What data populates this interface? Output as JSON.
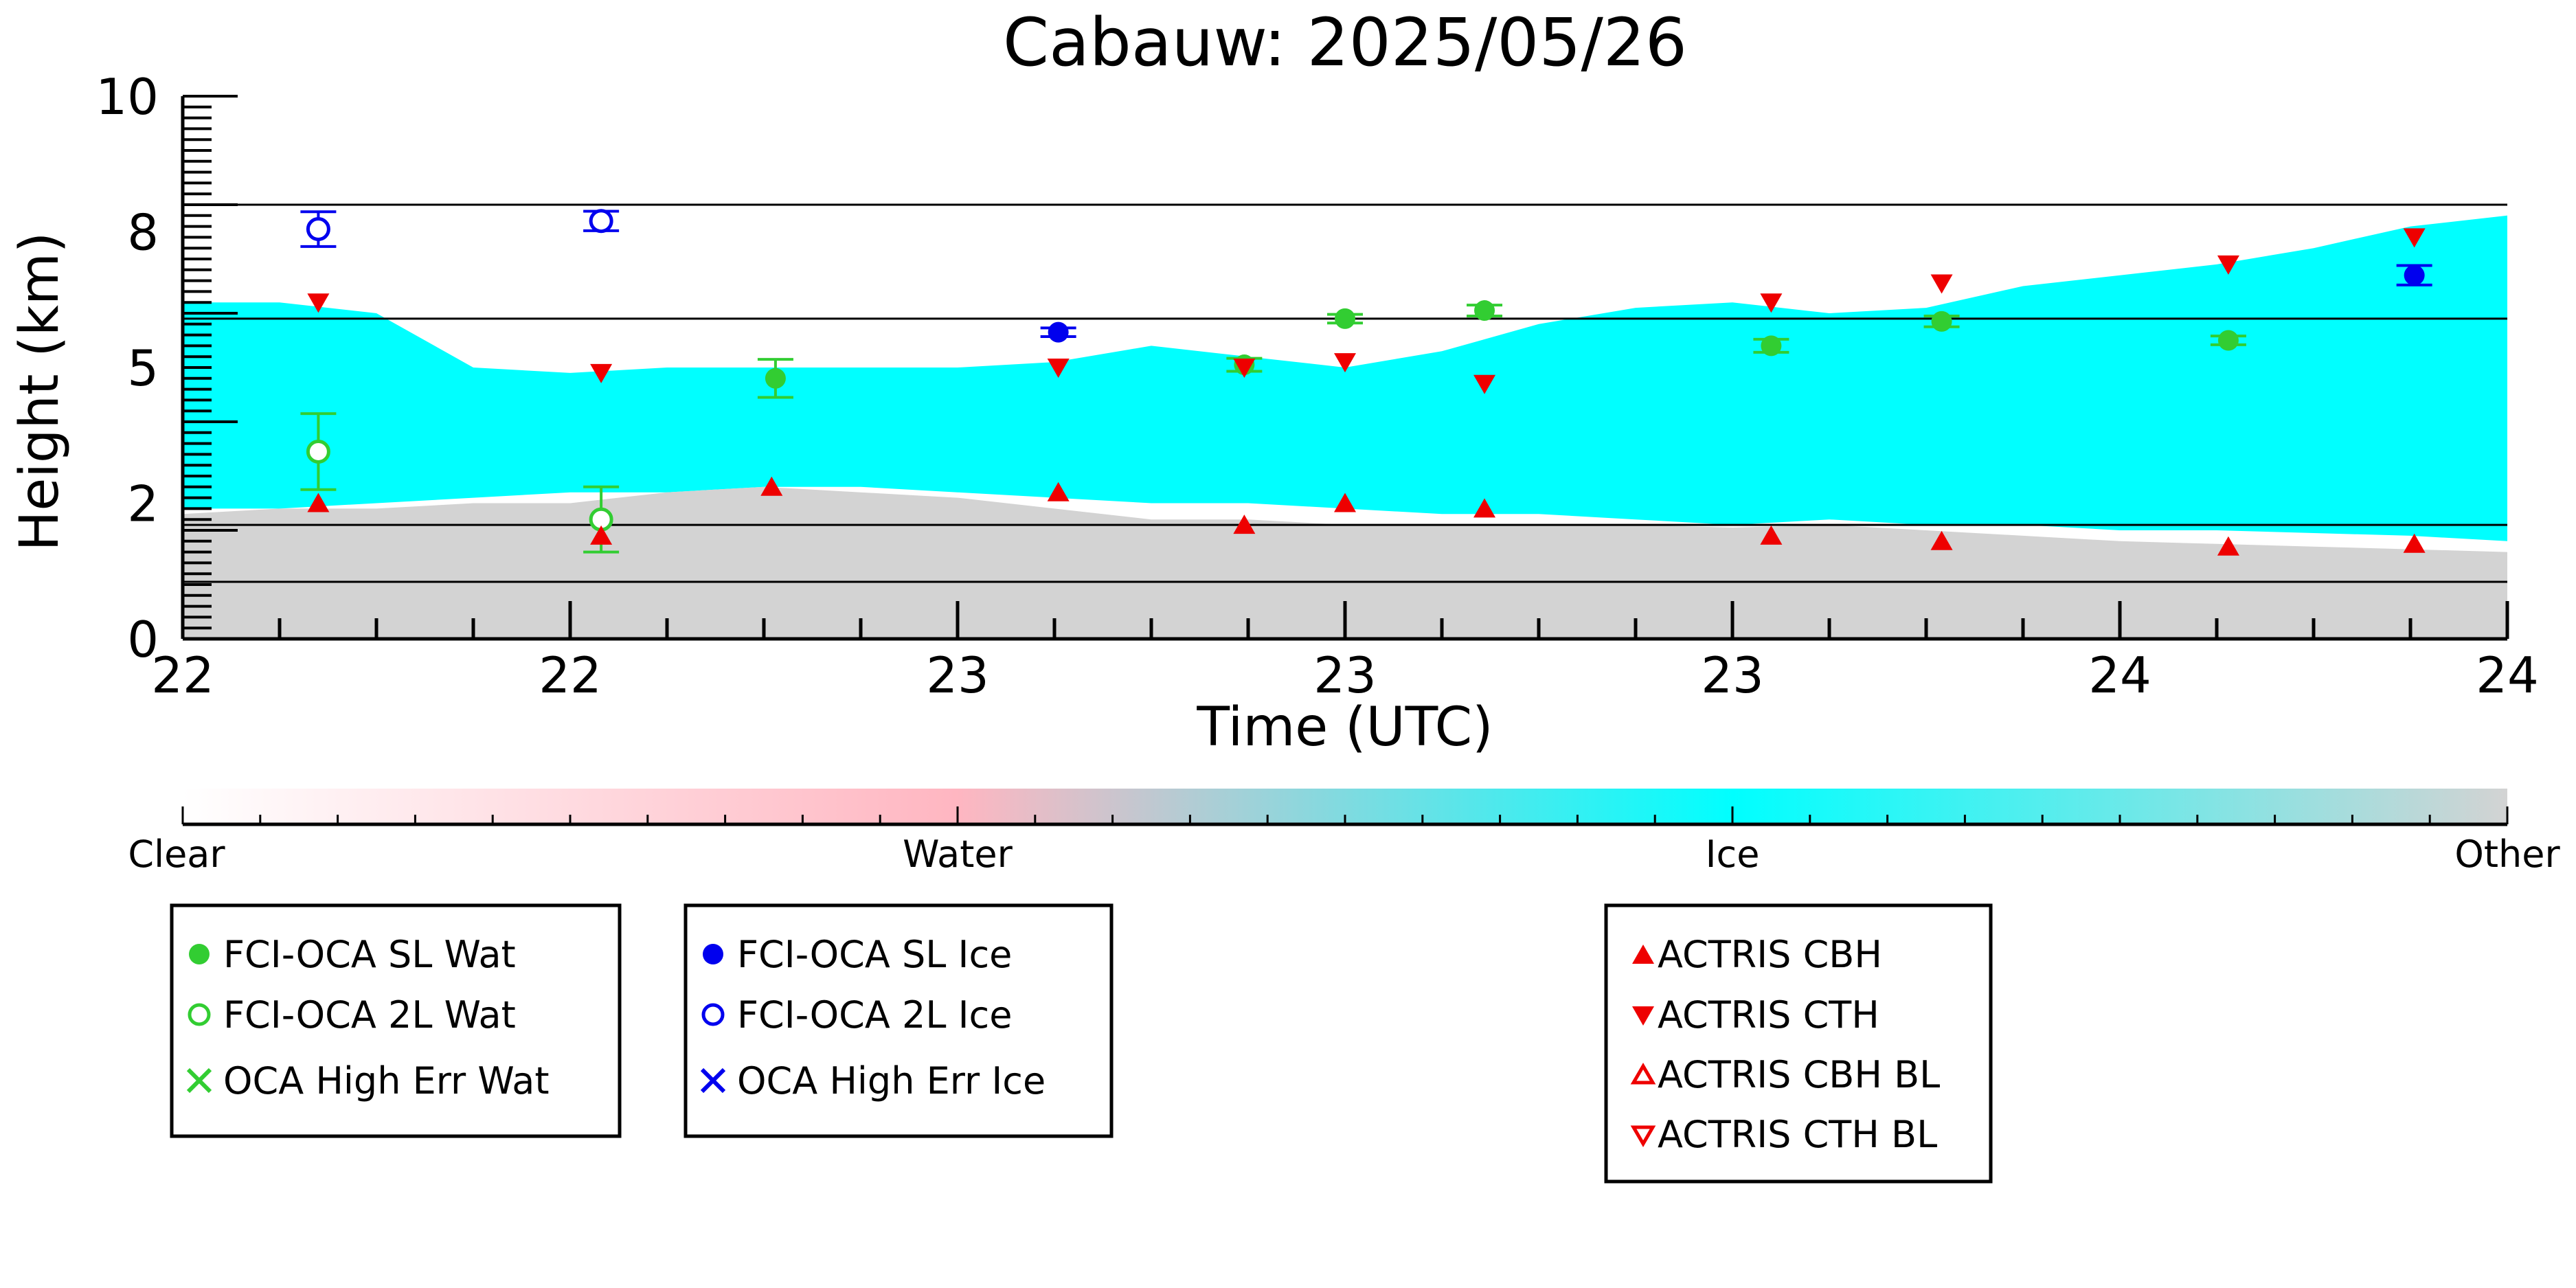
{
  "chart_data": {
    "type": "scatter",
    "title": "Cabauw: 2025/05/26",
    "xlabel": "Time (UTC)",
    "ylabel": "Height (km)",
    "xlim": [
      0,
      6
    ],
    "ylim": [
      0,
      10
    ],
    "x_tick_labels": [
      "22",
      "22",
      "23",
      "23",
      "23",
      "24",
      "24"
    ],
    "y_tick_labels": [
      "0",
      "2",
      "5",
      "8",
      "10"
    ],
    "grid": false,
    "reference_lines_km": [
      1.05,
      2.1,
      5.9,
      8.0
    ],
    "cloud_mask": {
      "class_colors": {
        "ice": "#00FFFF",
        "other": "#D3D3D3"
      },
      "ice_base_km": [
        2.4,
        2.4,
        2.5,
        2.6,
        2.7,
        2.7,
        2.8,
        2.8,
        2.7,
        2.6,
        2.5,
        2.5,
        2.4,
        2.3,
        2.3,
        2.2,
        2.1,
        2.2,
        2.1,
        2.1,
        2.0,
        2.0,
        1.95,
        1.9,
        1.8
      ],
      "ice_top_km": [
        6.2,
        6.2,
        6.0,
        5.0,
        4.9,
        5.0,
        5.0,
        5.0,
        5.0,
        5.1,
        5.4,
        5.2,
        5.0,
        5.3,
        5.8,
        6.1,
        6.2,
        6.0,
        6.1,
        6.5,
        6.7,
        6.9,
        7.2,
        7.6,
        7.8
      ],
      "other_top_km": [
        2.3,
        2.4,
        2.4,
        2.5,
        2.5,
        2.7,
        2.8,
        2.7,
        2.6,
        2.4,
        2.2,
        2.2,
        2.1,
        2.1,
        2.1,
        2.1,
        2.05,
        2.1,
        2.0,
        1.9,
        1.8,
        1.75,
        1.7,
        1.65,
        1.6
      ]
    },
    "colorbar": {
      "labels": [
        "Clear",
        "Water",
        "Ice",
        "Other"
      ],
      "colors": [
        "#FFFFFF",
        "#FFB6C1",
        "#00FFFF",
        "#D3D3D3"
      ]
    },
    "series": [
      {
        "name": "FCI-OCA SL Wat",
        "marker": "filled-circle",
        "color": "#32CD32",
        "points": [
          {
            "x": 1.53,
            "y": 4.8,
            "err": 0.35
          },
          {
            "x": 2.74,
            "y": 5.05,
            "err": 0.12
          },
          {
            "x": 3.0,
            "y": 5.9,
            "err": 0.08
          },
          {
            "x": 3.36,
            "y": 6.05,
            "err": 0.1
          },
          {
            "x": 4.1,
            "y": 5.4,
            "err": 0.12
          },
          {
            "x": 4.54,
            "y": 5.85,
            "err": 0.1
          },
          {
            "x": 5.28,
            "y": 5.5,
            "err": 0.08
          }
        ]
      },
      {
        "name": "FCI-OCA 2L Wat",
        "marker": "open-circle",
        "color": "#32CD32",
        "points": [
          {
            "x": 0.35,
            "y": 3.45,
            "err": 0.7
          },
          {
            "x": 1.08,
            "y": 2.2,
            "err": 0.6
          }
        ]
      },
      {
        "name": "OCA High Err Wat",
        "marker": "x",
        "color": "#32CD32",
        "points": []
      },
      {
        "name": "FCI-OCA SL Ice",
        "marker": "filled-circle",
        "color": "#0000EE",
        "points": [
          {
            "x": 2.26,
            "y": 5.65,
            "err": 0.08
          },
          {
            "x": 5.76,
            "y": 6.7,
            "err": 0.18
          }
        ]
      },
      {
        "name": "FCI-OCA 2L Ice",
        "marker": "open-circle",
        "color": "#0000EE",
        "points": [
          {
            "x": 0.35,
            "y": 7.55,
            "err": 0.32
          },
          {
            "x": 1.08,
            "y": 7.7,
            "err": 0.18
          }
        ]
      },
      {
        "name": "OCA High Err Ice",
        "marker": "x",
        "color": "#0000EE",
        "points": []
      },
      {
        "name": "ACTRIS CBH",
        "marker": "triangle-up",
        "color": "#EE0000",
        "points": [
          {
            "x": 0.35,
            "y": 2.5
          },
          {
            "x": 1.08,
            "y": 1.9
          },
          {
            "x": 1.52,
            "y": 2.8
          },
          {
            "x": 2.26,
            "y": 2.7
          },
          {
            "x": 2.74,
            "y": 2.1
          },
          {
            "x": 3.0,
            "y": 2.5
          },
          {
            "x": 3.36,
            "y": 2.4
          },
          {
            "x": 4.1,
            "y": 1.9
          },
          {
            "x": 4.54,
            "y": 1.8
          },
          {
            "x": 5.28,
            "y": 1.7
          },
          {
            "x": 5.76,
            "y": 1.75
          }
        ]
      },
      {
        "name": "ACTRIS CTH",
        "marker": "triangle-down",
        "color": "#EE0000",
        "points": [
          {
            "x": 0.35,
            "y": 6.2
          },
          {
            "x": 1.08,
            "y": 4.9
          },
          {
            "x": 2.26,
            "y": 5.0
          },
          {
            "x": 2.74,
            "y": 5.0
          },
          {
            "x": 3.0,
            "y": 5.1
          },
          {
            "x": 3.36,
            "y": 4.7
          },
          {
            "x": 4.1,
            "y": 6.2
          },
          {
            "x": 4.54,
            "y": 6.55
          },
          {
            "x": 5.28,
            "y": 6.9
          },
          {
            "x": 5.76,
            "y": 7.4
          }
        ]
      },
      {
        "name": "ACTRIS CBH BL",
        "marker": "open-triangle-up",
        "color": "#EE0000",
        "points": []
      },
      {
        "name": "ACTRIS CTH BL",
        "marker": "open-triangle-down",
        "color": "#EE0000",
        "points": []
      }
    ]
  }
}
